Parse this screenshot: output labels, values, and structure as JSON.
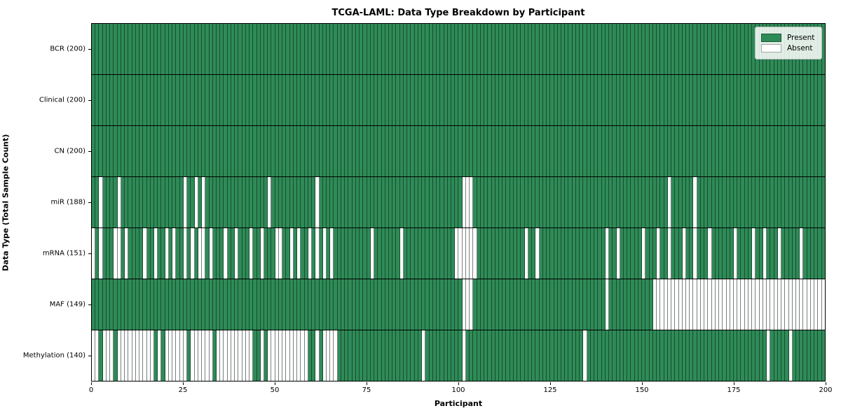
{
  "title": "TCGA-LAML: Data Type Breakdown by Participant",
  "xlabel": "Participant",
  "ylabel": "Data Type (Total Sample Count)",
  "legend": {
    "present_label": "Present",
    "absent_label": "Absent"
  },
  "colors": {
    "present": "#2e8b57",
    "absent": "#ffffff",
    "cell_edge": "rgba(10,25,18,0.55)",
    "row_separator": "#000000",
    "plot_border": "#000000"
  },
  "chart_data": {
    "type": "heatmap",
    "title": "TCGA-LAML: Data Type Breakdown by Participant",
    "xlabel": "Participant",
    "ylabel": "Data Type (Total Sample Count)",
    "x_range": [
      0,
      200
    ],
    "n_participants": 200,
    "x_ticks": [
      0,
      25,
      50,
      75,
      100,
      125,
      150,
      175,
      200
    ],
    "grid": false,
    "legend_position": "upper-right-inside",
    "legend_entries": [
      {
        "label": "Present",
        "color": "#2e8b57"
      },
      {
        "label": "Absent",
        "color": "#ffffff"
      }
    ],
    "rows": [
      {
        "label": "BCR (200)",
        "data_type": "BCR",
        "present_count": 200,
        "absent_participants": []
      },
      {
        "label": "Clinical (200)",
        "data_type": "Clinical",
        "present_count": 200,
        "absent_participants": []
      },
      {
        "label": "CN (200)",
        "data_type": "CN",
        "present_count": 200,
        "absent_participants": []
      },
      {
        "label": "miR (188)",
        "data_type": "miR",
        "present_count": 188,
        "absent_participants": [
          2,
          7,
          25,
          28,
          30,
          48,
          61,
          101,
          102,
          103,
          157,
          164
        ]
      },
      {
        "label": "mRNA (151)",
        "data_type": "mRNA",
        "present_count": 151,
        "absent_participants": [
          0,
          2,
          6,
          7,
          9,
          14,
          17,
          20,
          22,
          25,
          27,
          29,
          30,
          32,
          36,
          39,
          43,
          46,
          50,
          51,
          54,
          56,
          59,
          61,
          63,
          65,
          76,
          84,
          99,
          100,
          101,
          102,
          103,
          104,
          118,
          121,
          140,
          143,
          150,
          154,
          157,
          161,
          164,
          168,
          175,
          180,
          183,
          187,
          193
        ]
      },
      {
        "label": "MAF (149)",
        "data_type": "MAF",
        "present_count": 149,
        "absent_participants": [
          101,
          102,
          103,
          140,
          153,
          154,
          155,
          156,
          157,
          158,
          159,
          160,
          161,
          162,
          163,
          164,
          165,
          166,
          167,
          168,
          169,
          170,
          171,
          172,
          173,
          174,
          175,
          176,
          177,
          178,
          179,
          180,
          181,
          182,
          183,
          184,
          185,
          186,
          187,
          188,
          189,
          190,
          191,
          192,
          193,
          194,
          195,
          196,
          197,
          198,
          199
        ]
      },
      {
        "label": "Methylation (140)",
        "data_type": "Methylation",
        "present_count": 140,
        "absent_participants": [
          0,
          1,
          3,
          4,
          5,
          7,
          8,
          9,
          10,
          11,
          12,
          13,
          14,
          15,
          16,
          18,
          20,
          21,
          22,
          23,
          24,
          25,
          27,
          28,
          29,
          30,
          31,
          32,
          34,
          35,
          36,
          37,
          38,
          39,
          40,
          41,
          42,
          43,
          46,
          48,
          49,
          50,
          51,
          52,
          53,
          54,
          55,
          56,
          57,
          58,
          61,
          63,
          64,
          65,
          66,
          90,
          101,
          134,
          184,
          190
        ]
      }
    ]
  }
}
